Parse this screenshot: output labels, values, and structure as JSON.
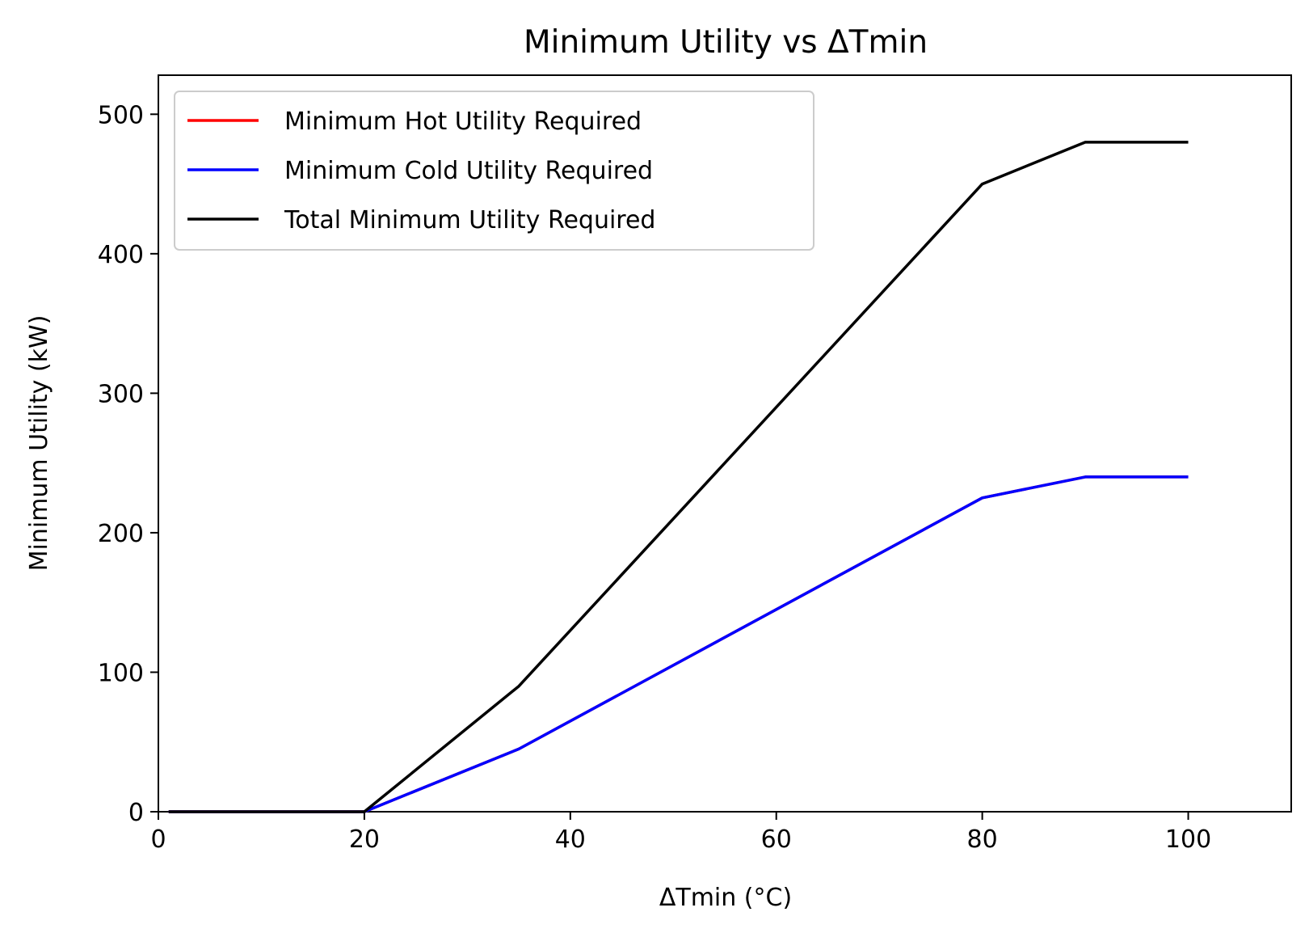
{
  "chart_data": {
    "type": "line",
    "title": "Minimum Utility vs ΔTmin",
    "xlabel": "ΔTmin (°C)",
    "ylabel": "Minimum Utility (kW)",
    "xlim": [
      0,
      110
    ],
    "ylim": [
      0,
      528
    ],
    "xticks": [
      "0",
      "20",
      "40",
      "60",
      "80",
      "100"
    ],
    "yticks": [
      "0",
      "100",
      "200",
      "300",
      "400",
      "500"
    ],
    "grid": false,
    "legend_position": "top-left",
    "series": [
      {
        "name": "Minimum Hot Utility Required",
        "color": "#ff0000",
        "x": [
          1,
          20,
          35,
          80,
          90,
          100
        ],
        "y": [
          0,
          0,
          45,
          225,
          240,
          240
        ]
      },
      {
        "name": "Minimum Cold Utility Required",
        "color": "#0000ff",
        "x": [
          1,
          20,
          35,
          80,
          90,
          100
        ],
        "y": [
          0,
          0,
          45,
          225,
          240,
          240
        ]
      },
      {
        "name": "Total Minimum Utility Required",
        "color": "#000000",
        "x": [
          1,
          20,
          35,
          80,
          90,
          100
        ],
        "y": [
          0,
          0,
          90,
          450,
          480,
          480
        ]
      }
    ]
  }
}
